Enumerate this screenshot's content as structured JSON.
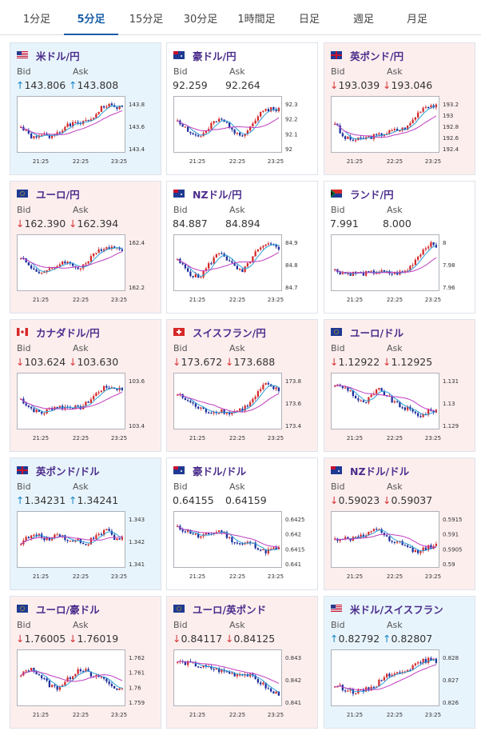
{
  "tabs": [
    {
      "label": "1分足",
      "active": false
    },
    {
      "label": "5分足",
      "active": true
    },
    {
      "label": "15分足",
      "active": false
    },
    {
      "label": "30分足",
      "active": false
    },
    {
      "label": "1時間足",
      "active": false
    },
    {
      "label": "日足",
      "active": false
    },
    {
      "label": "週足",
      "active": false
    },
    {
      "label": "月足",
      "active": false
    }
  ],
  "bid_label": "Bid",
  "ask_label": "Ask",
  "x_labels": [
    "21:25",
    "22:25",
    "23:25"
  ],
  "colors": {
    "up_candle": "#d42a2a",
    "down_candle": "#1f2f9c",
    "ma_short": "#2a9fd8",
    "ma_long": "#c03cc0",
    "up_arrow": "#1a86c6",
    "down_arrow": "#d43535"
  },
  "cards": [
    {
      "name": "米ドル/円",
      "flag": "us-flag",
      "dir": "up",
      "bid": "143.806",
      "ask": "143.808",
      "bid_arrow": "↑",
      "ask_arrow": "↑",
      "y_ticks": [
        "143.8",
        "143.6",
        "143.4"
      ],
      "chart_data": {
        "type": "candlestick",
        "trend": [
          0.45,
          0.3,
          0.2,
          0.3,
          0.25,
          0.35,
          0.45,
          0.5,
          0.55,
          0.55,
          0.65,
          0.85,
          0.9,
          0.88,
          0.85
        ],
        "x_labels": [
          "21:25",
          "22:25",
          "23:25"
        ],
        "y_ticks": [
          "143.8",
          "143.6",
          "143.4"
        ]
      }
    },
    {
      "name": "豪ドル/円",
      "flag": "au-flag",
      "dir": "flat",
      "bid": "92.259",
      "ask": "92.264",
      "bid_arrow": "",
      "ask_arrow": "",
      "y_ticks": [
        "92.3",
        "92.2",
        "92.1",
        "92"
      ],
      "chart_data": {
        "type": "candlestick",
        "trend": [
          0.6,
          0.45,
          0.3,
          0.25,
          0.35,
          0.55,
          0.6,
          0.5,
          0.35,
          0.3,
          0.45,
          0.65,
          0.8,
          0.85,
          0.82
        ],
        "x_labels": [
          "21:25",
          "22:25",
          "23:25"
        ],
        "y_ticks": [
          "92.3",
          "92.2",
          "92.1",
          "92"
        ]
      }
    },
    {
      "name": "英ポンド/円",
      "flag": "gb-flag",
      "dir": "down",
      "bid": "193.039",
      "ask": "193.046",
      "bid_arrow": "↓",
      "ask_arrow": "↓",
      "y_ticks": [
        "193.2",
        "193",
        "192.8",
        "192.6",
        "192.4"
      ],
      "chart_data": {
        "type": "candlestick",
        "trend": [
          0.55,
          0.25,
          0.2,
          0.18,
          0.22,
          0.25,
          0.28,
          0.32,
          0.38,
          0.4,
          0.45,
          0.65,
          0.85,
          0.92,
          0.88
        ],
        "x_labels": [
          "21:25",
          "22:25",
          "23:25"
        ],
        "y_ticks": [
          "193.2",
          "193",
          "192.8",
          "192.6",
          "192.4"
        ]
      }
    },
    {
      "name": "ユーロ/円",
      "flag": "eu-flag",
      "dir": "down",
      "bid": "162.390",
      "ask": "162.394",
      "bid_arrow": "↓",
      "ask_arrow": "↓",
      "y_ticks": [
        "162.4",
        "162.2"
      ],
      "chart_data": {
        "type": "candlestick",
        "trend": [
          0.65,
          0.45,
          0.35,
          0.3,
          0.35,
          0.45,
          0.55,
          0.45,
          0.4,
          0.5,
          0.65,
          0.8,
          0.85,
          0.82,
          0.8
        ],
        "x_labels": [
          "21:25",
          "22:25",
          "23:25"
        ],
        "y_ticks": [
          "162.4",
          "162.2"
        ]
      }
    },
    {
      "name": "NZドル/円",
      "flag": "nz-flag",
      "dir": "flat",
      "bid": "84.887",
      "ask": "84.894",
      "bid_arrow": "",
      "ask_arrow": "",
      "y_ticks": [
        "84.9",
        "84.8",
        "84.7"
      ],
      "chart_data": {
        "type": "candlestick",
        "trend": [
          0.55,
          0.4,
          0.25,
          0.2,
          0.4,
          0.6,
          0.75,
          0.55,
          0.4,
          0.3,
          0.55,
          0.75,
          0.85,
          0.88,
          0.82
        ],
        "x_labels": [
          "21:25",
          "22:25",
          "23:25"
        ],
        "y_ticks": [
          "84.9",
          "84.8",
          "84.7"
        ]
      }
    },
    {
      "name": "ランド/円",
      "flag": "za-flag",
      "dir": "flat",
      "bid": "7.991",
      "ask": "8.000",
      "bid_arrow": "",
      "ask_arrow": "",
      "y_ticks": [
        "8",
        "7.98",
        "7.96"
      ],
      "chart_data": {
        "type": "candlestick",
        "trend": [
          0.35,
          0.3,
          0.28,
          0.3,
          0.28,
          0.3,
          0.32,
          0.3,
          0.28,
          0.3,
          0.35,
          0.55,
          0.75,
          0.9,
          0.85
        ],
        "x_labels": [
          "21:25",
          "22:25",
          "23:25"
        ],
        "y_ticks": [
          "8",
          "7.98",
          "7.96"
        ]
      }
    },
    {
      "name": "カナダドル/円",
      "flag": "ca-flag",
      "dir": "down",
      "bid": "103.624",
      "ask": "103.630",
      "bid_arrow": "↓",
      "ask_arrow": "↓",
      "y_ticks": [
        "103.6",
        "103.4"
      ],
      "chart_data": {
        "type": "candlestick",
        "trend": [
          0.55,
          0.4,
          0.3,
          0.25,
          0.35,
          0.4,
          0.38,
          0.4,
          0.35,
          0.45,
          0.6,
          0.75,
          0.8,
          0.78,
          0.75
        ],
        "x_labels": [
          "21:25",
          "22:25",
          "23:25"
        ],
        "y_ticks": [
          "103.6",
          "103.4"
        ]
      }
    },
    {
      "name": "スイスフラン/円",
      "flag": "ch-flag",
      "dir": "down",
      "bid": "173.672",
      "ask": "173.688",
      "bid_arrow": "↓",
      "ask_arrow": "↓",
      "y_ticks": [
        "173.8",
        "173.6",
        "173.4"
      ],
      "chart_data": {
        "type": "candlestick",
        "trend": [
          0.65,
          0.55,
          0.45,
          0.35,
          0.3,
          0.28,
          0.32,
          0.25,
          0.3,
          0.35,
          0.45,
          0.65,
          0.85,
          0.8,
          0.72
        ],
        "x_labels": [
          "21:25",
          "22:25",
          "23:25"
        ],
        "y_ticks": [
          "173.8",
          "173.6",
          "173.4"
        ]
      }
    },
    {
      "name": "ユーロ/ドル",
      "flag": "eu-us-flag",
      "dir": "down",
      "bid": "1.12922",
      "ask": "1.12925",
      "bid_arrow": "↓",
      "ask_arrow": "↓",
      "y_ticks": [
        "1.131",
        "1.13",
        "1.129"
      ],
      "chart_data": {
        "type": "candlestick",
        "trend": [
          0.85,
          0.8,
          0.75,
          0.55,
          0.45,
          0.6,
          0.75,
          0.65,
          0.5,
          0.4,
          0.35,
          0.25,
          0.2,
          0.3,
          0.32
        ],
        "x_labels": [
          "21:25",
          "22:25",
          "23:25"
        ],
        "y_ticks": [
          "1.131",
          "1.13",
          "1.129"
        ]
      }
    },
    {
      "name": "英ポンド/ドル",
      "flag": "gb-us-flag",
      "dir": "up",
      "bid": "1.34231",
      "ask": "1.34241",
      "bid_arrow": "↑",
      "ask_arrow": "↑",
      "y_ticks": [
        "1.343",
        "1.342",
        "1.341"
      ],
      "chart_data": {
        "type": "candlestick",
        "trend": [
          0.45,
          0.55,
          0.6,
          0.55,
          0.5,
          0.65,
          0.55,
          0.45,
          0.5,
          0.4,
          0.55,
          0.6,
          0.75,
          0.5,
          0.55
        ],
        "x_labels": [
          "21:25",
          "22:25",
          "23:25"
        ],
        "y_ticks": [
          "1.343",
          "1.342",
          "1.341"
        ]
      }
    },
    {
      "name": "豪ドル/ドル",
      "flag": "au-us-flag",
      "dir": "flat",
      "bid": "0.64155",
      "ask": "0.64159",
      "bid_arrow": "",
      "ask_arrow": "",
      "y_ticks": [
        "0.6425",
        "0.642",
        "0.6415",
        "0.641"
      ],
      "chart_data": {
        "type": "candlestick",
        "trend": [
          0.75,
          0.7,
          0.65,
          0.55,
          0.6,
          0.65,
          0.7,
          0.55,
          0.45,
          0.4,
          0.45,
          0.35,
          0.25,
          0.3,
          0.32
        ],
        "x_labels": [
          "21:25",
          "22:25",
          "23:25"
        ],
        "y_ticks": [
          "0.6425",
          "0.642",
          "0.6415",
          "0.641"
        ]
      }
    },
    {
      "name": "NZドル/ドル",
      "flag": "nz-us-flag",
      "dir": "down",
      "bid": "0.59023",
      "ask": "0.59037",
      "bid_arrow": "↓",
      "ask_arrow": "↓",
      "y_ticks": [
        "0.5915",
        "0.591",
        "0.5905",
        "0.59"
      ],
      "chart_data": {
        "type": "candlestick",
        "trend": [
          0.5,
          0.55,
          0.5,
          0.6,
          0.55,
          0.65,
          0.75,
          0.55,
          0.4,
          0.45,
          0.35,
          0.25,
          0.3,
          0.35,
          0.38
        ],
        "x_labels": [
          "21:25",
          "22:25",
          "23:25"
        ],
        "y_ticks": [
          "0.5915",
          "0.591",
          "0.5905",
          "0.59"
        ]
      }
    },
    {
      "name": "ユーロ/豪ドル",
      "flag": "eu-au-flag",
      "dir": "down",
      "bid": "1.76005",
      "ask": "1.76019",
      "bid_arrow": "↓",
      "ask_arrow": "↓",
      "y_ticks": [
        "1.762",
        "1.761",
        "1.76",
        "1.759"
      ],
      "chart_data": {
        "type": "candlestick",
        "trend": [
          0.55,
          0.7,
          0.65,
          0.5,
          0.35,
          0.3,
          0.4,
          0.55,
          0.7,
          0.65,
          0.5,
          0.55,
          0.4,
          0.3,
          0.25
        ],
        "x_labels": [
          "21:25",
          "22:25",
          "23:25"
        ],
        "y_ticks": [
          "1.762",
          "1.761",
          "1.76",
          "1.759"
        ]
      }
    },
    {
      "name": "ユーロ/英ポンド",
      "flag": "eu-gb-flag",
      "dir": "down",
      "bid": "0.84117",
      "ask": "0.84125",
      "bid_arrow": "↓",
      "ask_arrow": "↓",
      "y_ticks": [
        "0.843",
        "0.842",
        "0.841"
      ],
      "chart_data": {
        "type": "candlestick",
        "trend": [
          0.85,
          0.82,
          0.8,
          0.75,
          0.72,
          0.7,
          0.65,
          0.62,
          0.58,
          0.6,
          0.55,
          0.45,
          0.35,
          0.2,
          0.18
        ],
        "x_labels": [
          "21:25",
          "22:25",
          "23:25"
        ],
        "y_ticks": [
          "0.843",
          "0.842",
          "0.841"
        ]
      }
    },
    {
      "name": "米ドル/スイスフラン",
      "flag": "us-ch-flag",
      "dir": "up",
      "bid": "0.82792",
      "ask": "0.82807",
      "bid_arrow": "↑",
      "ask_arrow": "↑",
      "y_ticks": [
        "0.828",
        "0.827",
        "0.826"
      ],
      "chart_data": {
        "type": "candlestick",
        "trend": [
          0.35,
          0.3,
          0.25,
          0.2,
          0.25,
          0.3,
          0.4,
          0.6,
          0.55,
          0.65,
          0.7,
          0.75,
          0.85,
          0.88,
          0.85
        ],
        "x_labels": [
          "21:25",
          "22:25",
          "23:25"
        ],
        "y_ticks": [
          "0.828",
          "0.827",
          "0.826"
        ]
      }
    }
  ]
}
